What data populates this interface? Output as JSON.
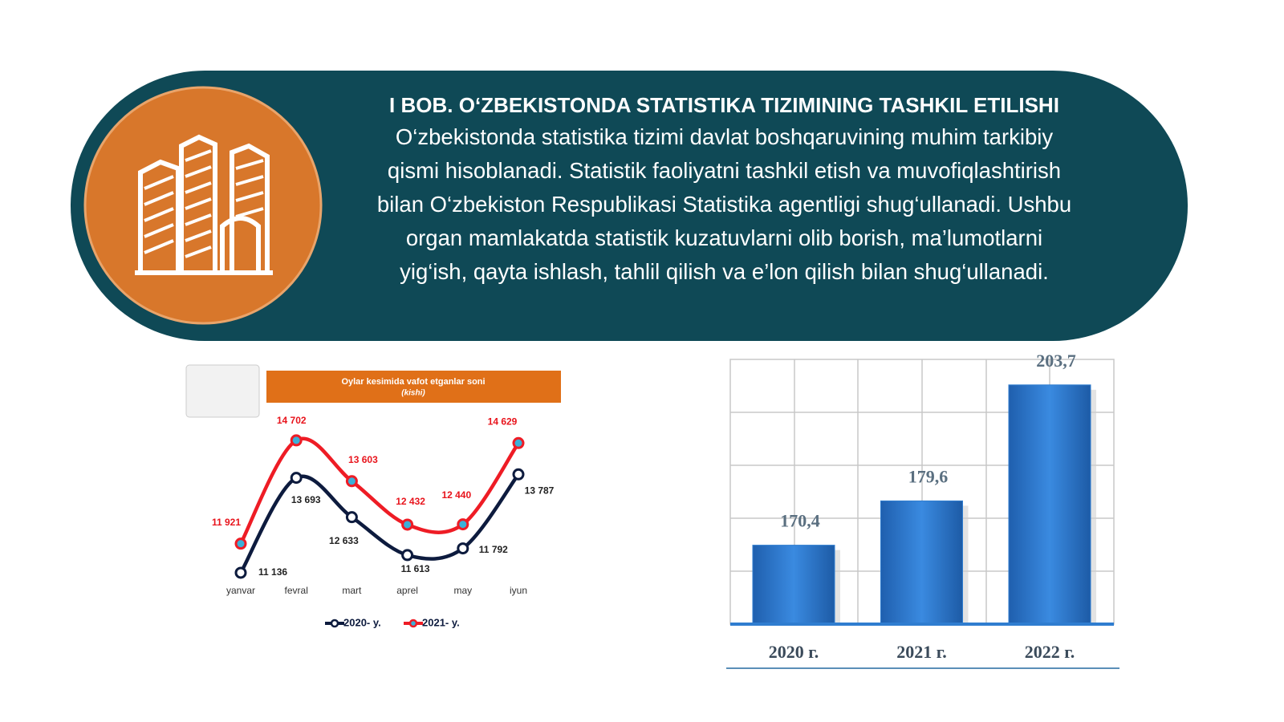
{
  "banner": {
    "title": "I BOB. O‘ZBEKISTONDA STATISTIKA TIZIMINING TASHKIL ETILISHI",
    "paragraph_lines": [
      "O‘zbekistonda statistika tizimi davlat boshqaruvining muhim tarkibiy",
      "qismi hisoblanadi. Statistik faoliyatni tashkil etish va muvofiqlashtirish",
      "bilan O‘zbekiston Respublikasi Statistika agentligi shug‘ullanadi. Ushbu",
      "organ mamlakatda statistik kuzatuvlarni olib borish, ma’lumotlarni",
      "yig‘ish, qayta ishlash, tahlil qilish va e’lon qilish bilan shug‘ullanadi."
    ]
  },
  "chart_data": [
    {
      "type": "line",
      "title": "Oylar kesimida vafot etganlar soni",
      "subtitle": "(kishi)",
      "categories": [
        "yanvar",
        "fevral",
        "mart",
        "aprel",
        "may",
        "iyun"
      ],
      "ylim": [
        10500,
        15500
      ],
      "series": [
        {
          "name": "2020- y.",
          "color": "#0d1b3e",
          "values": [
            11136,
            13693,
            12633,
            11613,
            11792,
            13787
          ],
          "value_labels": [
            "11 136",
            "13 693",
            "12 633",
            "11 613",
            "11 792",
            "13 787"
          ]
        },
        {
          "name": "2021- y.",
          "color": "#ee1c25",
          "values": [
            11921,
            14702,
            13603,
            12432,
            12440,
            14629
          ],
          "value_labels": [
            "11 921",
            "14 702",
            "13 603",
            "12 432",
            "12 440",
            "14 629"
          ]
        }
      ]
    },
    {
      "type": "bar",
      "categories": [
        "2020 г.",
        "2021 г.",
        "2022 г."
      ],
      "values": [
        170.4,
        179.6,
        203.7
      ],
      "value_labels": [
        "170,4",
        "179,6",
        "203,7"
      ],
      "color": "#2f7dd0",
      "ylim": [
        154,
        209
      ]
    }
  ]
}
